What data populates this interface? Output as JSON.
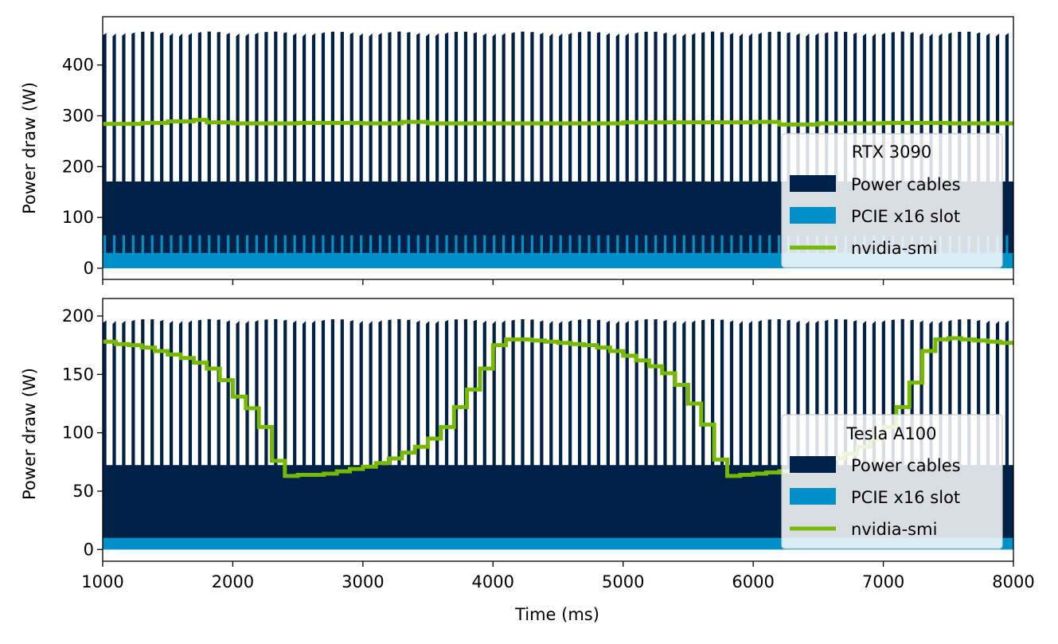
{
  "colors": {
    "power_cables": "#002147",
    "pcie_slot": "#0090c8",
    "nvidia_smi": "#76b900",
    "axes": "#000000",
    "legend_border": "#cccccc"
  },
  "chart_data": [
    {
      "type": "area",
      "xlabel": "",
      "ylabel": "Power draw (W)",
      "xlim": [
        1000,
        8000
      ],
      "ylim": [
        -22,
        495
      ],
      "x_ticks": [
        1000,
        2000,
        3000,
        4000,
        5000,
        6000,
        7000,
        8000
      ],
      "y_ticks": [
        0,
        100,
        200,
        300,
        400
      ],
      "show_x_tick_labels": false,
      "grid": false,
      "legend": {
        "title": "RTX 3090",
        "placement": "lower right",
        "entries": [
          "Power cables",
          "PCIE x16 slot",
          "nvidia-smi"
        ]
      },
      "series": [
        {
          "name": "Power cables",
          "style": "fill",
          "period_ms": 73,
          "base_low": 30,
          "base_high": 170,
          "peak": 465,
          "slot_peak": 65
        },
        {
          "name": "PCIE x16 slot",
          "style": "fill",
          "low": 30,
          "high": 65
        },
        {
          "name": "nvidia-smi",
          "style": "line",
          "x": [
            1000,
            1300,
            1500,
            1700,
            1800,
            2000,
            2500,
            3000,
            3300,
            3500,
            4000,
            4500,
            5000,
            5500,
            6000,
            6200,
            6500,
            7000,
            7500,
            8000
          ],
          "values": [
            284,
            286,
            289,
            292,
            287,
            285,
            286,
            285,
            288,
            285,
            285,
            285,
            287,
            287,
            288,
            283,
            285,
            286,
            285,
            285
          ]
        }
      ]
    },
    {
      "type": "area",
      "xlabel": "Time (ms)",
      "ylabel": "Power draw (W)",
      "xlim": [
        1000,
        8000
      ],
      "ylim": [
        -10,
        215
      ],
      "x_ticks": [
        1000,
        2000,
        3000,
        4000,
        5000,
        6000,
        7000,
        8000
      ],
      "y_ticks": [
        0,
        50,
        100,
        150,
        200
      ],
      "show_x_tick_labels": true,
      "grid": false,
      "legend": {
        "title": "Tesla A100",
        "placement": "lower right",
        "entries": [
          "Power cables",
          "PCIE x16 slot",
          "nvidia-smi"
        ]
      },
      "series": [
        {
          "name": "Power cables",
          "style": "fill",
          "period_ms": 73,
          "base_low": 10,
          "base_high": 72,
          "peak": 197
        },
        {
          "name": "PCIE x16 slot",
          "style": "fill",
          "low": 0,
          "high": 10
        },
        {
          "name": "nvidia-smi",
          "style": "line",
          "x": [
            1000,
            1100,
            1200,
            1300,
            1400,
            1500,
            1600,
            1700,
            1800,
            1900,
            2000,
            2100,
            2200,
            2300,
            2400,
            2500,
            2600,
            2700,
            2800,
            2900,
            3000,
            3100,
            3200,
            3300,
            3400,
            3500,
            3600,
            3700,
            3800,
            3900,
            4000,
            4100,
            4200,
            4300,
            4400,
            4500,
            4600,
            4700,
            4800,
            4900,
            5000,
            5100,
            5200,
            5300,
            5400,
            5500,
            5600,
            5700,
            5800,
            5900,
            6000,
            6100,
            6200,
            6300,
            6400,
            6500,
            6600,
            6700,
            6800,
            6900,
            7000,
            7100,
            7200,
            7300,
            7400,
            7500,
            7600,
            7700,
            7800,
            7900,
            8000
          ],
          "values": [
            178,
            176,
            175,
            173,
            170,
            167,
            164,
            160,
            155,
            145,
            131,
            121,
            105,
            76,
            63,
            64,
            64,
            65,
            67,
            69,
            71,
            74,
            78,
            83,
            88,
            95,
            105,
            122,
            137,
            155,
            175,
            180,
            180,
            179,
            178,
            177,
            176,
            175,
            173,
            170,
            166,
            162,
            157,
            151,
            141,
            125,
            107,
            77,
            63,
            64,
            65,
            66,
            67,
            69,
            71,
            74,
            78,
            82,
            88,
            95,
            105,
            122,
            143,
            170,
            180,
            181,
            180,
            179,
            178,
            177,
            176
          ]
        }
      ]
    }
  ]
}
